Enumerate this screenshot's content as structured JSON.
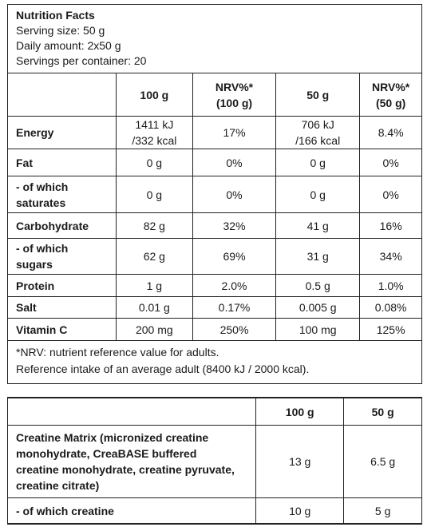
{
  "header": {
    "title": "Nutrition Facts",
    "lines": [
      "Serving size: 50 g",
      "Daily amount: 2x50 g",
      "Servings per container: 20"
    ]
  },
  "table": {
    "columns": [
      "100 g",
      "NRV%*\n(100 g)",
      "50 g",
      "NRV%*\n(50 g)"
    ],
    "rows": [
      [
        "Energy",
        "1411 kJ\n/332 kcal",
        "17%",
        "706 kJ\n/166 kcal",
        "8.4%"
      ],
      [
        "Fat",
        "0 g",
        "0%",
        "0 g",
        "0%"
      ],
      [
        "- of which\nsaturates",
        "0 g",
        "0%",
        "0 g",
        "0%"
      ],
      [
        "Carbohydrate",
        "82 g",
        "32%",
        "41 g",
        "16%"
      ],
      [
        "- of which\nsugars",
        "62 g",
        "69%",
        "31 g",
        "34%"
      ],
      [
        "Protein",
        "1 g",
        "2.0%",
        "0.5 g",
        "1.0%"
      ],
      [
        "Salt",
        "0.01 g",
        "0.17%",
        "0.005 g",
        "0.08%"
      ],
      [
        "Vitamin C",
        "200 mg",
        "250%",
        "100 mg",
        "125%"
      ]
    ]
  },
  "footnote": [
    "*NRV: nutrient reference value for adults.",
    "Reference intake of an average adult (8400 kJ / 2000 kcal)."
  ],
  "table2": {
    "columns": [
      "100 g",
      "50 g"
    ],
    "rows": [
      [
        "Creatine Matrix (micronized creatine\nmonohydrate, CreaBASE buffered\ncreatine monohydrate, creatine pyruvate,\ncreatine citrate)",
        "13 g",
        "6.5 g"
      ],
      [
        "- of which creatine",
        "10 g",
        "5 g"
      ]
    ]
  }
}
